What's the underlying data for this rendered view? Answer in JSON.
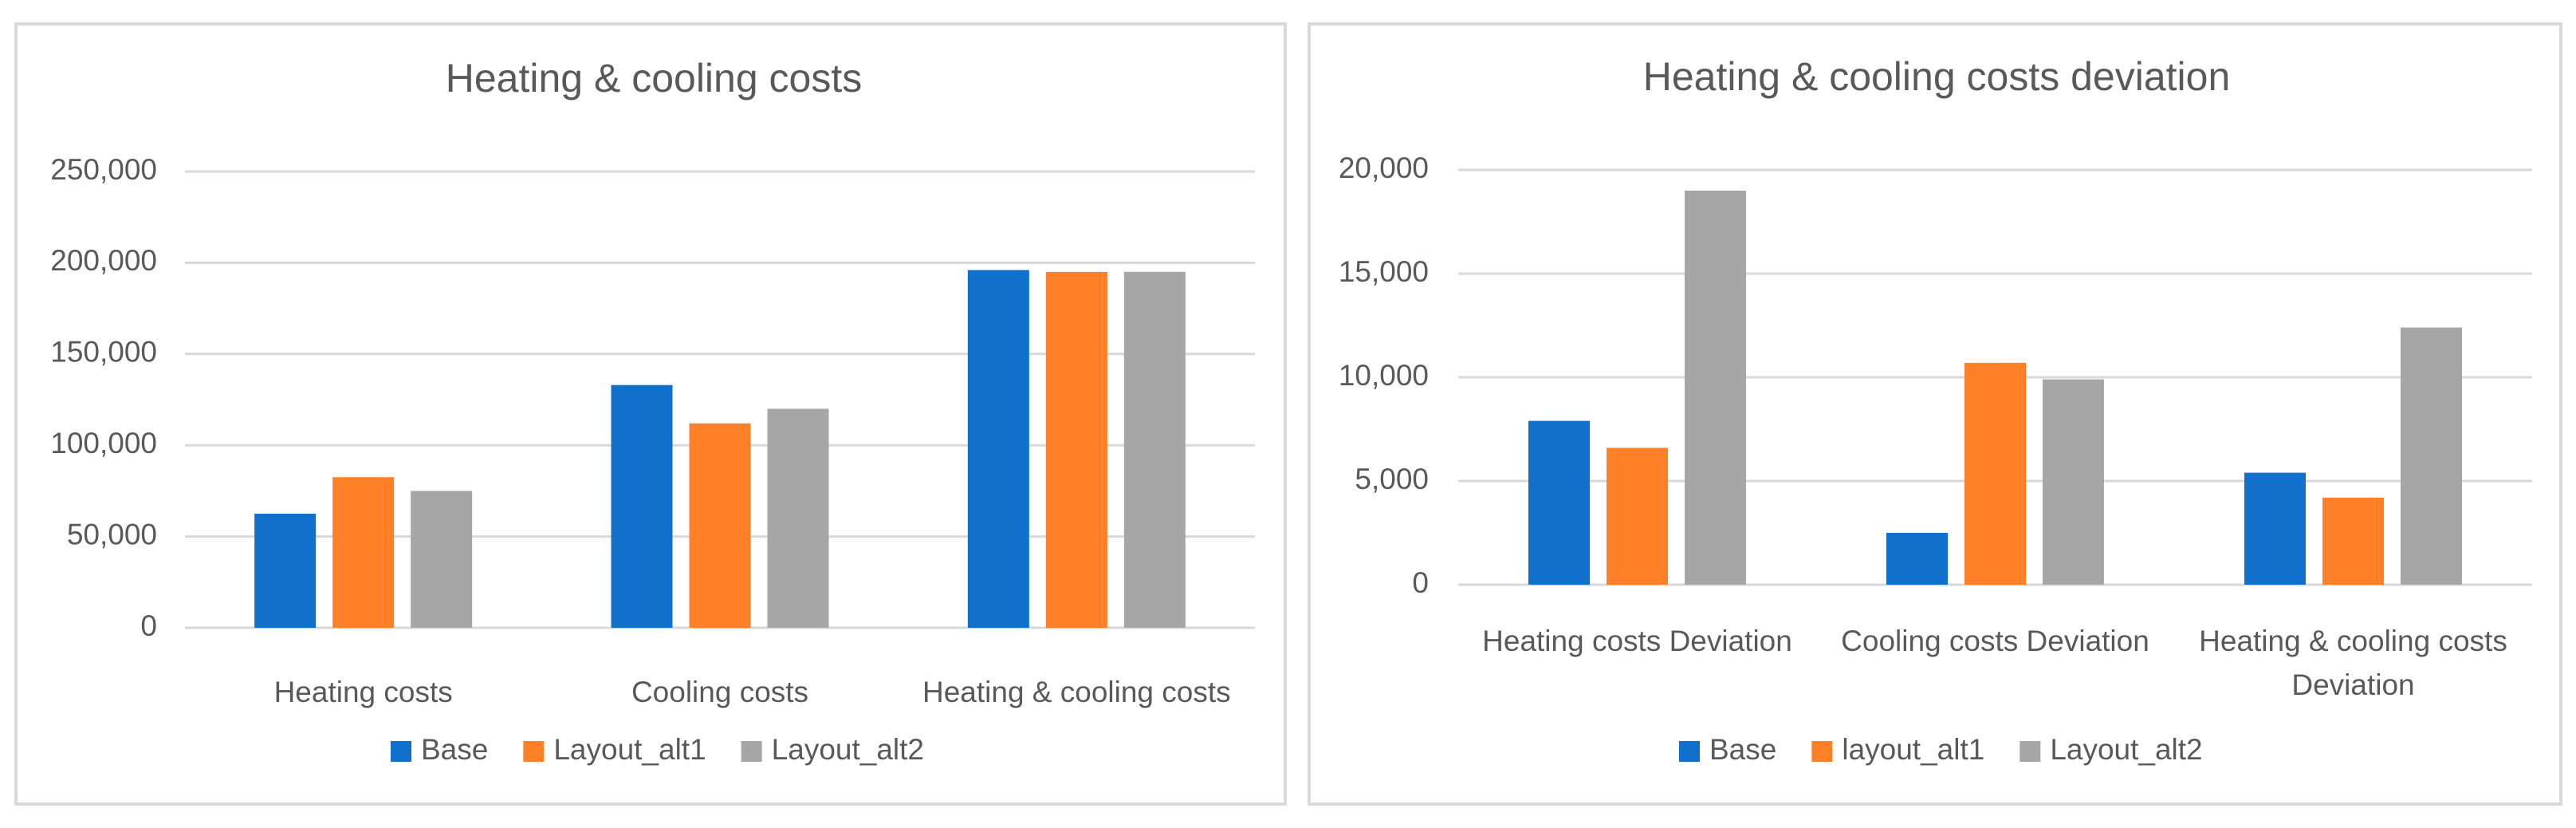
{
  "chart_data": [
    {
      "type": "bar",
      "title": "Heating & cooling costs",
      "xlabel": "",
      "ylabel": "",
      "categories": [
        "Heating costs",
        "Cooling costs",
        "Heating & cooling costs"
      ],
      "series": [
        {
          "name": "Base",
          "color": "#1170CC",
          "values": [
            62500,
            133000,
            196000
          ]
        },
        {
          "name": "Layout_alt1",
          "color": "#FF8027",
          "values": [
            82500,
            112000,
            195000
          ]
        },
        {
          "name": "Layout_alt2",
          "color": "#A6A6A6",
          "values": [
            75000,
            120000,
            195000
          ]
        }
      ],
      "ylim": [
        0,
        250000
      ],
      "yticks": [
        0,
        50000,
        100000,
        150000,
        200000,
        250000
      ],
      "ytick_labels": [
        "0",
        "50,000",
        "100,000",
        "150,000",
        "200,000",
        "250,000"
      ],
      "grid": true,
      "legend_position": "bottom"
    },
    {
      "type": "bar",
      "title": "Heating & cooling costs deviation",
      "xlabel": "",
      "ylabel": "",
      "categories": [
        "Heating costs Deviation",
        "Cooling costs Deviation",
        "Heating & cooling costs Deviation"
      ],
      "category_lines": [
        [
          "Heating costs Deviation"
        ],
        [
          "Cooling costs Deviation"
        ],
        [
          "Heating & cooling costs",
          "Deviation"
        ]
      ],
      "series": [
        {
          "name": "Base",
          "color": "#1170CC",
          "values": [
            7900,
            2500,
            5400
          ]
        },
        {
          "name": "layout_alt1",
          "color": "#FF8027",
          "values": [
            6600,
            10700,
            4200
          ]
        },
        {
          "name": "Layout_alt2",
          "color": "#A6A6A6",
          "values": [
            19000,
            9900,
            12400
          ]
        }
      ],
      "ylim": [
        0,
        20000
      ],
      "yticks": [
        0,
        5000,
        10000,
        15000,
        20000
      ],
      "ytick_labels": [
        "0",
        "5,000",
        "10,000",
        "15,000",
        "20,000"
      ],
      "grid": true,
      "legend_position": "bottom"
    }
  ]
}
